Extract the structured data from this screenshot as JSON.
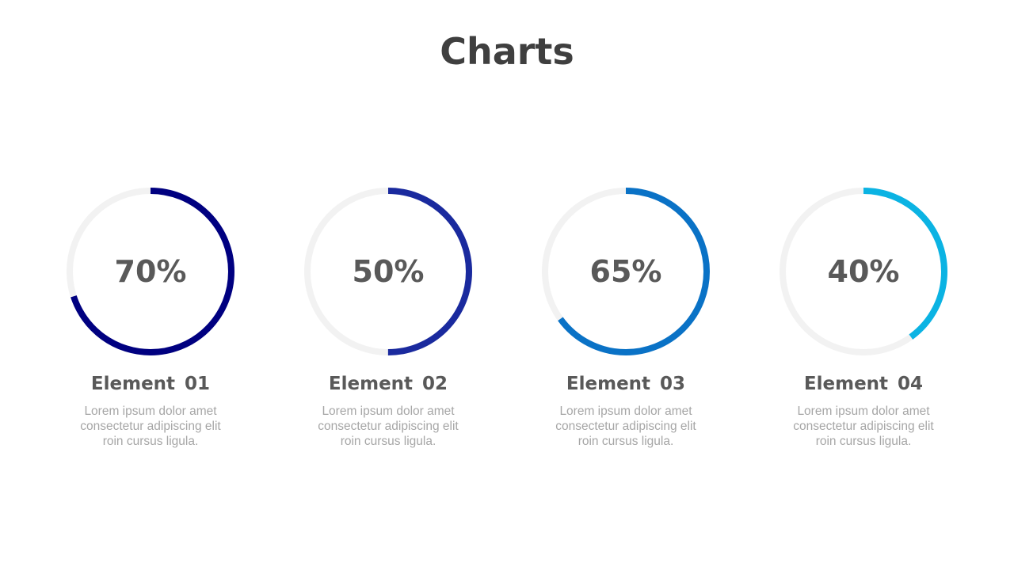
{
  "title": "Charts",
  "chart_data": {
    "type": "donut",
    "track_color": "#f2f2f2",
    "items": [
      {
        "label": "Element 01",
        "value": 70,
        "display": "70%",
        "color": "#000080",
        "text": "Lorem ipsum dolor amet consectetur adipiscing elit roin cursus ligula."
      },
      {
        "label": "Element 02",
        "value": 50,
        "display": "50%",
        "color": "#1a2a9e",
        "text": "Lorem ipsum dolor amet consectetur adipiscing elit roin cursus ligula."
      },
      {
        "label": "Element 03",
        "value": 65,
        "display": "65%",
        "color": "#0a72c6",
        "text": "Lorem ipsum dolor amet consectetur adipiscing elit roin cursus ligula."
      },
      {
        "label": "Element 04",
        "value": 40,
        "display": "40%",
        "color": "#0bb3e3",
        "text": "Lorem ipsum dolor amet consectetur adipiscing elit roin cursus ligula."
      }
    ]
  }
}
